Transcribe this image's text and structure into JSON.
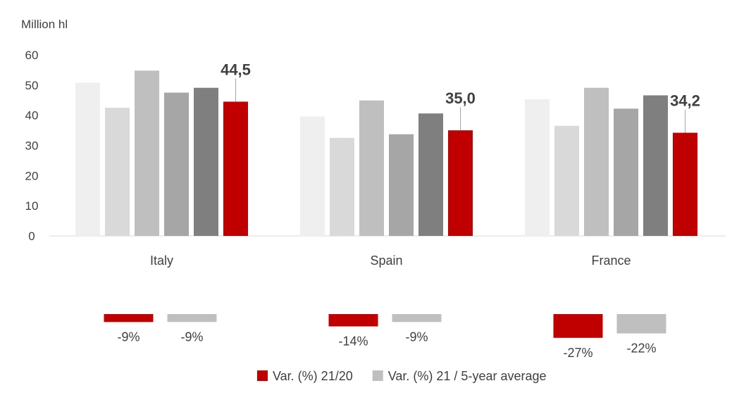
{
  "chart_data": {
    "type": "bar",
    "ylabel": "Million hl",
    "ylim": [
      0,
      60
    ],
    "yticks": [
      "0",
      "10",
      "20",
      "30",
      "40",
      "50",
      "60"
    ],
    "categories": [
      "Italy",
      "Spain",
      "France"
    ],
    "series": [
      {
        "values": [
          50.8,
          39.6,
          45.3
        ],
        "color": "#efefef"
      },
      {
        "values": [
          42.5,
          32.5,
          36.5
        ],
        "color": "#d9d9d9"
      },
      {
        "values": [
          54.8,
          44.9,
          49.1
        ],
        "color": "#bfbfbf"
      },
      {
        "values": [
          47.5,
          33.7,
          42.2
        ],
        "color": "#a6a6a6"
      },
      {
        "values": [
          49.1,
          40.6,
          46.6
        ],
        "color": "#7f7f7f"
      },
      {
        "values": [
          44.5,
          35.0,
          34.2
        ],
        "color": "#c00000"
      }
    ],
    "value_labels": [
      "44,5",
      "35,0",
      "34,2"
    ],
    "variations": {
      "var_21_20": {
        "values": [
          -9,
          -14,
          -27
        ],
        "labels": [
          "-9%",
          "-14%",
          "-27%"
        ],
        "color": "#c00000"
      },
      "var_21_5yr": {
        "values": [
          -9,
          -9,
          -22
        ],
        "labels": [
          "-9%",
          "-9%",
          "-22%"
        ],
        "color": "#bfbfbf"
      }
    },
    "legend": [
      {
        "label": "Var. (%) 21/20",
        "color": "#c00000"
      },
      {
        "label": "Var. (%) 21 / 5-year average",
        "color": "#bfbfbf"
      }
    ],
    "grid": false,
    "legend_position": "bottom"
  }
}
